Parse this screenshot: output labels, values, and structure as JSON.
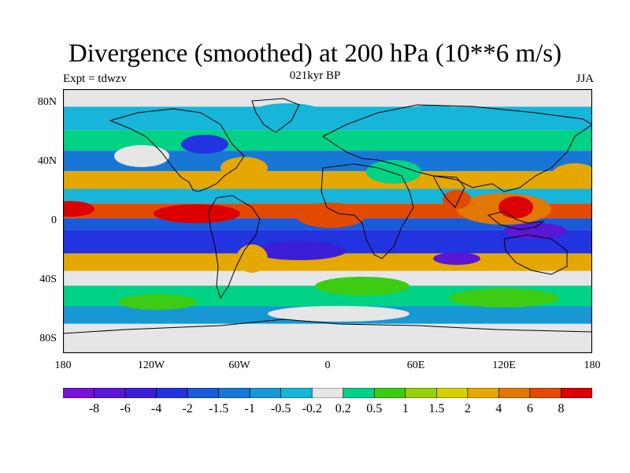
{
  "title": "Divergence (smoothed) at 200 hPa (10**6 m/s)",
  "subtitle_left": "Expt = tdwzv",
  "subtitle_center": "021kyr BP",
  "subtitle_right": "JJA",
  "lat_ticks": [
    "80N",
    "40N",
    "0",
    "40S",
    "80S"
  ],
  "lon_ticks": [
    "180",
    "120W",
    "60W",
    "0",
    "60E",
    "120E",
    "180"
  ],
  "colorbar": {
    "colors": [
      "#7a10d8",
      "#5a17d6",
      "#3c1ed8",
      "#2233e0",
      "#1a5ad9",
      "#1877d6",
      "#1797d4",
      "#16b5d9",
      "#e6e6e6",
      "#00d286",
      "#3ccc14",
      "#96d00a",
      "#d8cf04",
      "#e4a800",
      "#e37800",
      "#e24a00",
      "#dc0000"
    ],
    "labels": [
      "-8",
      "-6",
      "-4",
      "-2",
      "-1.5",
      "-1",
      "-0.5",
      "-0.2",
      "0.2",
      "0.5",
      "1",
      "1.5",
      "2",
      "4",
      "6",
      "8"
    ]
  },
  "field_bands": [
    {
      "lat_top": 90,
      "lat_bot": 78,
      "color": "#e6e6e6"
    },
    {
      "lat_top": 78,
      "lat_bot": 62,
      "color": "#16b5d9"
    },
    {
      "lat_top": 62,
      "lat_bot": 48,
      "color": "#00d286"
    },
    {
      "lat_top": 48,
      "lat_bot": 34,
      "color": "#1877d6"
    },
    {
      "lat_top": 34,
      "lat_bot": 22,
      "color": "#e4a800"
    },
    {
      "lat_top": 22,
      "lat_bot": 12,
      "color": "#16b5d9"
    },
    {
      "lat_top": 12,
      "lat_bot": 2,
      "color": "#e24a00"
    },
    {
      "lat_top": 2,
      "lat_bot": -6,
      "color": "#1a5ad9"
    },
    {
      "lat_top": -6,
      "lat_bot": -22,
      "color": "#2233e0"
    },
    {
      "lat_top": -22,
      "lat_bot": -34,
      "color": "#e4a800"
    },
    {
      "lat_top": -34,
      "lat_bot": -44,
      "color": "#e6e6e6"
    },
    {
      "lat_top": -44,
      "lat_bot": -58,
      "color": "#00d286"
    },
    {
      "lat_top": -58,
      "lat_bot": -70,
      "color": "#1797d4"
    },
    {
      "lat_top": -70,
      "lat_bot": -90,
      "color": "#e6e6e6"
    }
  ]
}
